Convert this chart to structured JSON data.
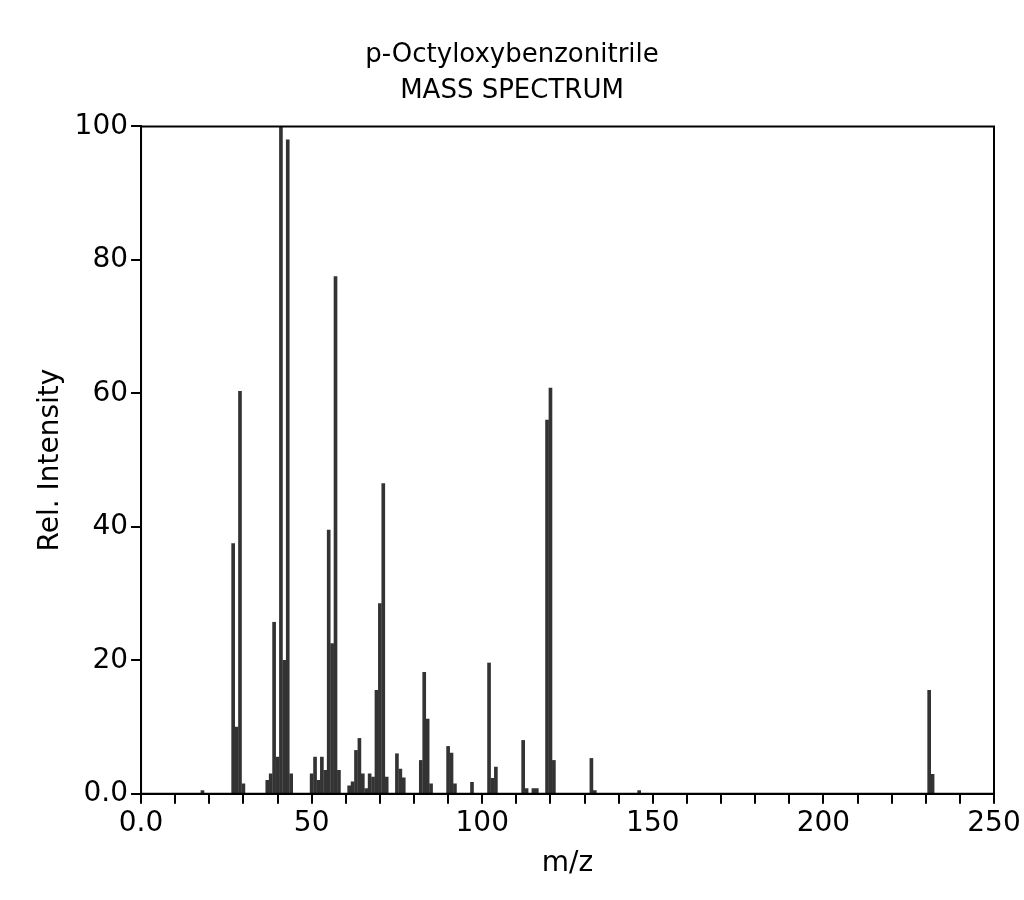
{
  "chart_data": {
    "type": "bar",
    "title": "p-Octyloxybenzonitrile",
    "subtitle": "MASS SPECTRUM",
    "xlabel": "m/z",
    "ylabel": "Rel. Intensity",
    "x": [
      18,
      27,
      28,
      29,
      30,
      37,
      38,
      39,
      40,
      41,
      42,
      43,
      44,
      50,
      51,
      52,
      53,
      54,
      55,
      56,
      57,
      58,
      61,
      62,
      63,
      64,
      65,
      66,
      67,
      68,
      69,
      70,
      71,
      72,
      75,
      76,
      77,
      82,
      83,
      84,
      85,
      90,
      91,
      92,
      97,
      102,
      103,
      104,
      112,
      113,
      115,
      116,
      119,
      120,
      121,
      132,
      133,
      146,
      231,
      232
    ],
    "values": [
      0.5,
      37.5,
      10,
      60.3,
      1.5,
      2,
      3,
      25.7,
      5.5,
      100,
      20,
      98,
      3,
      3,
      5.5,
      2,
      5.5,
      3.5,
      39.5,
      22.5,
      77.5,
      3.5,
      1.2,
      1.8,
      6.5,
      8.3,
      3,
      0.8,
      3,
      2.5,
      15.5,
      28.5,
      46.5,
      2.5,
      6,
      3.7,
      2.4,
      5,
      18.2,
      11.2,
      1.5,
      7.1,
      6.1,
      1.5,
      1.7,
      19.6,
      2.3,
      4,
      8,
      0.8,
      0.8,
      0.8,
      56,
      60.8,
      5,
      5.3,
      0.5,
      0.5,
      15.5,
      2.9
    ],
    "color": "#333333",
    "xlim": [
      0,
      250
    ],
    "xticks": [
      {
        "value": 0,
        "label": "0.0"
      },
      {
        "value": 10,
        "label": null
      },
      {
        "value": 20,
        "label": null
      },
      {
        "value": 30,
        "label": null
      },
      {
        "value": 40,
        "label": null
      },
      50,
      {
        "value": 60,
        "label": null
      },
      {
        "value": 70,
        "label": null
      },
      {
        "value": 80,
        "label": null
      },
      {
        "value": 90,
        "label": null
      },
      100,
      {
        "value": 110,
        "label": null
      },
      {
        "value": 120,
        "label": null
      },
      {
        "value": 130,
        "label": null
      },
      {
        "value": 140,
        "label": null
      },
      150,
      {
        "value": 160,
        "label": null
      },
      {
        "value": 170,
        "label": null
      },
      {
        "value": 180,
        "label": null
      },
      {
        "value": 190,
        "label": null
      },
      200,
      {
        "value": 210,
        "label": null
      },
      {
        "value": 220,
        "label": null
      },
      {
        "value": 230,
        "label": null
      },
      {
        "value": 240,
        "label": null
      },
      250
    ],
    "ylim": [
      0,
      100
    ],
    "yticks": [
      {
        "value": 0,
        "label": "0.0"
      },
      20,
      40,
      60,
      80,
      100
    ],
    "grid": false,
    "legend": false
  }
}
